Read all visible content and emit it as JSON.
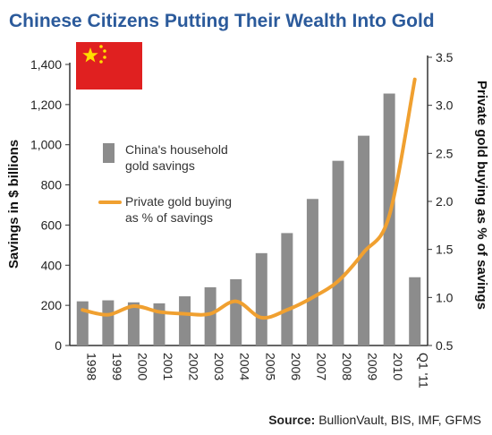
{
  "chart_data": {
    "type": "bar",
    "title": "Chinese Citizens Putting Their Wealth Into Gold",
    "categories": [
      "1998",
      "1999",
      "2000",
      "2001",
      "2002",
      "2003",
      "2004",
      "2005",
      "2006",
      "2007",
      "2008",
      "2009",
      "2010",
      "Q1 '11"
    ],
    "series": [
      {
        "name": "China's household gold savings",
        "type": "bar",
        "axis": "left",
        "color": "#8c8c8c",
        "values": [
          220,
          225,
          215,
          210,
          245,
          290,
          330,
          460,
          560,
          730,
          920,
          1045,
          1255,
          340
        ]
      },
      {
        "name": "Private gold buying as % of savings",
        "type": "line",
        "axis": "right",
        "color": "#f0a030",
        "values": [
          0.87,
          0.82,
          0.91,
          0.85,
          0.83,
          0.83,
          0.96,
          0.79,
          0.87,
          1.0,
          1.17,
          1.47,
          1.85,
          3.27
        ]
      }
    ],
    "ylabel": "Savings in $ billions",
    "ylim": [
      0,
      1400
    ],
    "yticks": [
      "0",
      "200",
      "400",
      "600",
      "800",
      "1,000",
      "1,200",
      "1,400"
    ],
    "y2label": "Private gold buying as % of savings",
    "y2lim": [
      0.5,
      3.5
    ],
    "y2ticks": [
      "0.5",
      "1.0",
      "1.5",
      "2.0",
      "2.5",
      "3.0",
      "3.5"
    ],
    "legend": {
      "placement": "upper-left",
      "bar_line1": "China's household",
      "bar_line2": "gold savings",
      "line_line1": "Private gold buying",
      "line_line2": "as % of savings"
    },
    "grid": false,
    "source_label": "Source:",
    "source_text": " BullionVault, BIS, IMF, GFMS",
    "flag": {
      "icon": "china-flag",
      "field_color": "#e02020",
      "star_color": "#ffde00"
    }
  }
}
